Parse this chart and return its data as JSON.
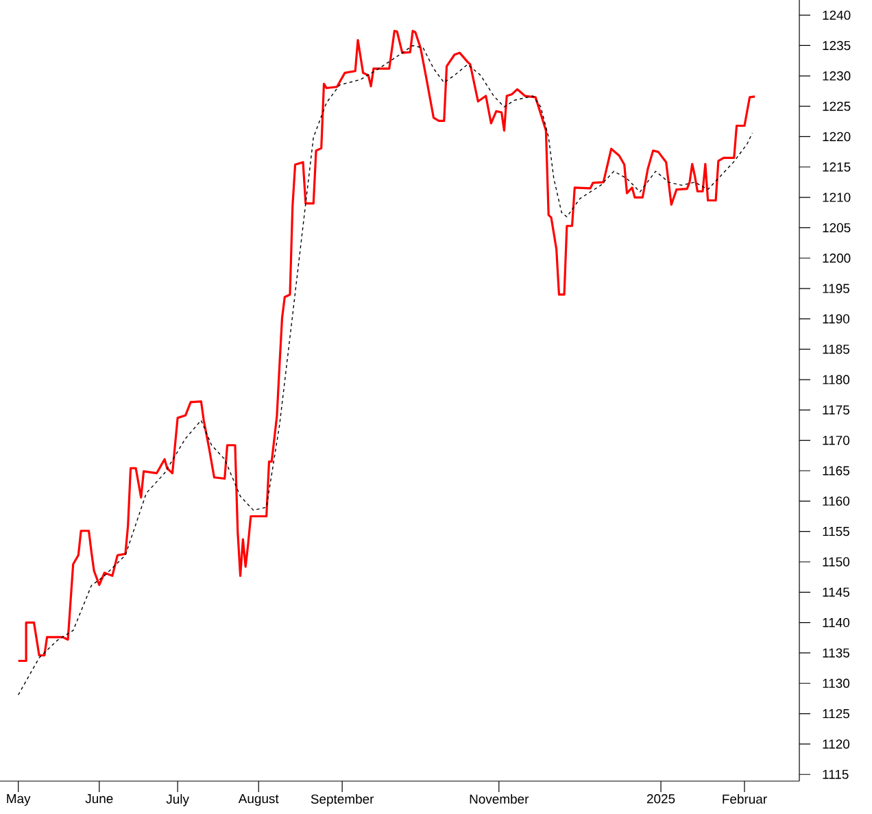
{
  "chart_data": {
    "type": "line",
    "xlim": [
      "2024-04-24",
      "2025-02-24"
    ],
    "ylim": [
      1113.9,
      1242.5
    ],
    "xticks": [
      {
        "value": "2024-05-01",
        "label": "May"
      },
      {
        "value": "2024-06-01",
        "label": "June"
      },
      {
        "value": "2024-07-01",
        "label": "July"
      },
      {
        "value": "2024-08-01",
        "label": "August"
      },
      {
        "value": "2024-09-02",
        "label": "September"
      },
      {
        "value": "2024-11-01",
        "label": "November"
      },
      {
        "value": "2025-01-02",
        "label": "2025"
      },
      {
        "value": "2025-02-03",
        "label": "Februar"
      }
    ],
    "yticks": [
      1115,
      1120,
      1125,
      1130,
      1135,
      1140,
      1145,
      1150,
      1155,
      1160,
      1165,
      1170,
      1175,
      1180,
      1185,
      1190,
      1195,
      1200,
      1205,
      1210,
      1215,
      1220,
      1225,
      1230,
      1235,
      1240
    ],
    "series": [
      {
        "color": "#ff0000",
        "line_style": "solid",
        "x": [
          "2024-05-01",
          "2024-05-04",
          "2024-05-04",
          "2024-05-07",
          "2024-05-09",
          "2024-05-11",
          "2024-05-12",
          "2024-05-18",
          "2024-05-20",
          "2024-05-22",
          "2024-05-24",
          "2024-05-25",
          "2024-05-28",
          "2024-05-29",
          "2024-05-30",
          "2024-06-01",
          "2024-06-03",
          "2024-06-06",
          "2024-06-08",
          "2024-06-11",
          "2024-06-12",
          "2024-06-13",
          "2024-06-15",
          "2024-06-17",
          "2024-06-18",
          "2024-06-23",
          "2024-06-26",
          "2024-06-27",
          "2024-06-29",
          "2024-07-01",
          "2024-07-04",
          "2024-07-06",
          "2024-07-10",
          "2024-07-11",
          "2024-07-13",
          "2024-07-15",
          "2024-07-19",
          "2024-07-20",
          "2024-07-23",
          "2024-07-24",
          "2024-07-25",
          "2024-07-26",
          "2024-07-27",
          "2024-07-28",
          "2024-07-29",
          "2024-08-04",
          "2024-08-05",
          "2024-08-06",
          "2024-08-08",
          "2024-08-09",
          "2024-08-10",
          "2024-08-11",
          "2024-08-13",
          "2024-08-14",
          "2024-08-15",
          "2024-08-18",
          "2024-08-19",
          "2024-08-22",
          "2024-08-23",
          "2024-08-25",
          "2024-08-26",
          "2024-08-27",
          "2024-08-31",
          "2024-09-03",
          "2024-09-07",
          "2024-09-08",
          "2024-09-10",
          "2024-09-12",
          "2024-09-13",
          "2024-09-14",
          "2024-09-20",
          "2024-09-22",
          "2024-09-23",
          "2024-09-25",
          "2024-09-28",
          "2024-09-29",
          "2024-09-30",
          "2024-10-02",
          "2024-10-04",
          "2024-10-07",
          "2024-10-09",
          "2024-10-11",
          "2024-10-12",
          "2024-10-15",
          "2024-10-17",
          "2024-10-20",
          "2024-10-21",
          "2024-10-24",
          "2024-10-27",
          "2024-10-29",
          "2024-10-31",
          "2024-11-02",
          "2024-11-03",
          "2024-11-04",
          "2024-11-06",
          "2024-11-08",
          "2024-11-11",
          "2024-11-15",
          "2024-11-19",
          "2024-11-20",
          "2024-11-21",
          "2024-11-23",
          "2024-11-24",
          "2024-11-26",
          "2024-11-27",
          "2024-11-29",
          "2024-11-30",
          "2024-12-06",
          "2024-12-07",
          "2024-12-11",
          "2024-12-14",
          "2024-12-17",
          "2024-12-19",
          "2024-12-20",
          "2024-12-22",
          "2024-12-23",
          "2024-12-26",
          "2024-12-28",
          "2024-12-30",
          "2025-01-01",
          "2025-01-04",
          "2025-01-06",
          "2025-01-08",
          "2025-01-12",
          "2025-01-13",
          "2025-01-14",
          "2025-01-15",
          "2025-01-16",
          "2025-01-18",
          "2025-01-19",
          "2025-01-20",
          "2025-01-23",
          "2025-01-24",
          "2025-01-26",
          "2025-01-30",
          "2025-01-31",
          "2025-02-03",
          "2025-02-05",
          "2025-02-07"
        ],
        "values": [
          1133.7,
          1133.7,
          1140.0,
          1140.0,
          1134.6,
          1134.6,
          1137.6,
          1137.6,
          1137.2,
          1149.6,
          1151.1,
          1155.1,
          1155.1,
          1151.6,
          1148.5,
          1146.2,
          1148.2,
          1147.7,
          1151.1,
          1151.3,
          1156.0,
          1165.4,
          1165.4,
          1160.6,
          1164.9,
          1164.6,
          1166.9,
          1165.4,
          1164.6,
          1173.7,
          1174.1,
          1176.3,
          1176.4,
          1173.3,
          1168.8,
          1163.9,
          1163.7,
          1169.2,
          1169.2,
          1154.9,
          1147.7,
          1153.7,
          1149.2,
          1153.0,
          1157.5,
          1157.5,
          1166.5,
          1166.5,
          1174.0,
          1182.3,
          1190.2,
          1193.6,
          1194.0,
          1208.6,
          1215.4,
          1215.8,
          1209.0,
          1209.0,
          1217.7,
          1218.1,
          1228.7,
          1228.0,
          1228.2,
          1230.5,
          1230.8,
          1235.9,
          1230.5,
          1230.1,
          1228.3,
          1231.2,
          1231.2,
          1237.4,
          1237.3,
          1233.8,
          1233.9,
          1237.4,
          1237.2,
          1234.6,
          1230.1,
          1223.1,
          1222.6,
          1222.6,
          1231.6,
          1233.5,
          1233.8,
          1232.3,
          1231.9,
          1225.8,
          1226.7,
          1222.2,
          1224.2,
          1224.0,
          1221.0,
          1226.7,
          1227.0,
          1227.8,
          1226.7,
          1226.5,
          1221.0,
          1207.1,
          1206.7,
          1201.5,
          1194.0,
          1194.0,
          1205.3,
          1205.3,
          1211.6,
          1211.5,
          1212.4,
          1212.5,
          1218.0,
          1216.9,
          1215.4,
          1210.7,
          1211.6,
          1210.0,
          1210.0,
          1214.7,
          1217.7,
          1217.5,
          1215.8,
          1208.8,
          1211.3,
          1211.4,
          1212.5,
          1215.5,
          1213.5,
          1211.0,
          1211.0,
          1215.5,
          1209.5,
          1209.5,
          1216.0,
          1216.5,
          1216.5,
          1221.8,
          1221.8,
          1226.5,
          1226.6
        ]
      },
      {
        "color": "#000000",
        "line_style": "dashed",
        "x": [
          "2024-05-01",
          "2024-05-09",
          "2024-05-16",
          "2024-05-22",
          "2024-05-29",
          "2024-06-03",
          "2024-06-11",
          "2024-06-19",
          "2024-06-26",
          "2024-07-04",
          "2024-07-10",
          "2024-07-14",
          "2024-07-19",
          "2024-07-25",
          "2024-07-30",
          "2024-08-04",
          "2024-08-09",
          "2024-08-14",
          "2024-08-18",
          "2024-08-22",
          "2024-08-27",
          "2024-09-01",
          "2024-09-09",
          "2024-09-16",
          "2024-09-24",
          "2024-09-29",
          "2024-10-03",
          "2024-10-07",
          "2024-10-11",
          "2024-10-15",
          "2024-10-20",
          "2024-10-25",
          "2024-10-30",
          "2024-11-03",
          "2024-11-07",
          "2024-11-14",
          "2024-11-17",
          "2024-11-20",
          "2024-11-22",
          "2024-11-25",
          "2024-11-27",
          "2024-12-02",
          "2024-12-10",
          "2024-12-15",
          "2024-12-20",
          "2024-12-25",
          "2024-12-31",
          "2025-01-05",
          "2025-01-10",
          "2025-01-15",
          "2025-01-20",
          "2025-01-25",
          "2025-01-30",
          "2025-02-04",
          "2025-02-06"
        ],
        "values": [
          1128.1,
          1134.2,
          1137.1,
          1138.7,
          1146.1,
          1147.7,
          1151.1,
          1161.3,
          1164.6,
          1170.3,
          1173.3,
          1169.2,
          1166.9,
          1160.8,
          1158.5,
          1159.0,
          1172.5,
          1190.6,
          1205.3,
          1219.9,
          1225.6,
          1228.5,
          1229.4,
          1231.2,
          1233.5,
          1235.0,
          1234.6,
          1231.2,
          1228.9,
          1230.1,
          1231.9,
          1230.1,
          1226.7,
          1224.9,
          1226.0,
          1226.7,
          1224.9,
          1219.9,
          1213.1,
          1207.5,
          1206.8,
          1209.8,
          1212.0,
          1214.3,
          1213.1,
          1210.9,
          1214.3,
          1212.5,
          1212.0,
          1212.5,
          1211.3,
          1213.6,
          1215.9,
          1218.8,
          1220.6
        ]
      }
    ]
  }
}
